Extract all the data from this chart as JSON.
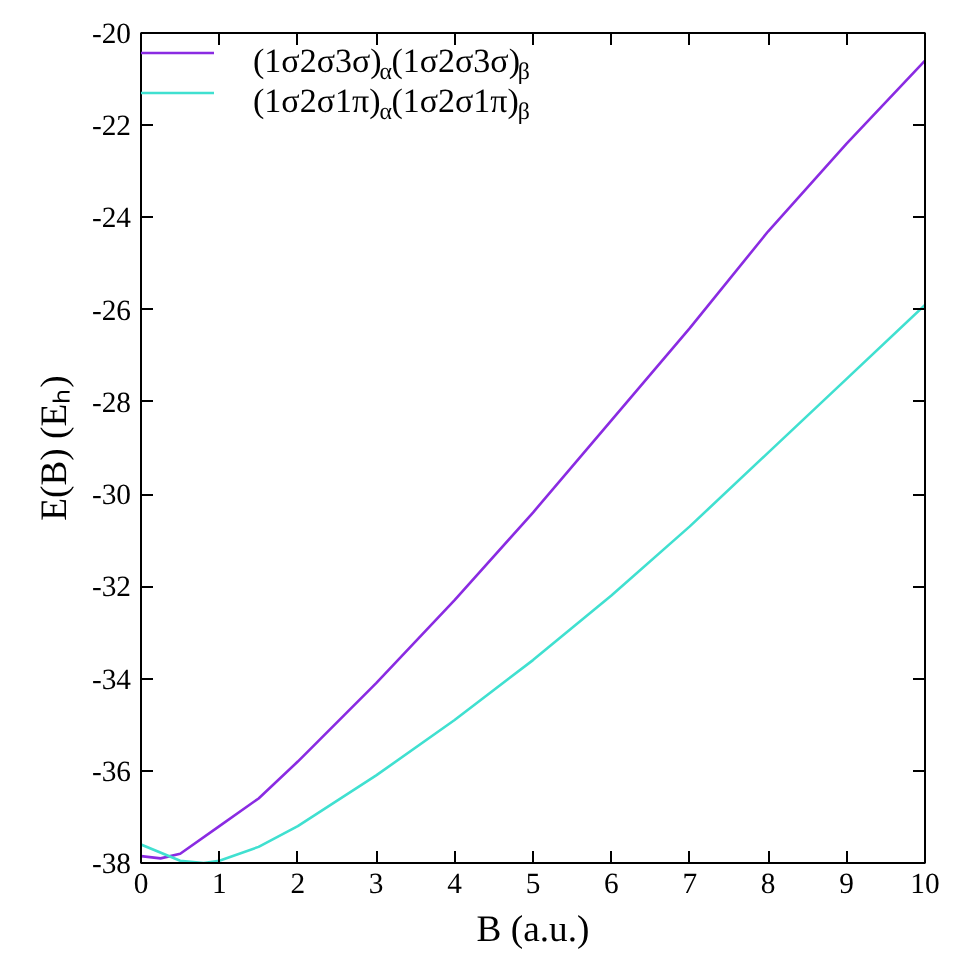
{
  "chart_data": {
    "type": "line",
    "xlabel": "B (a.u.)",
    "ylabel": "E(B) (Eₕ)",
    "xlim": [
      0,
      10
    ],
    "ylim": [
      -38,
      -20
    ],
    "xticks": [
      0,
      1,
      2,
      3,
      4,
      5,
      6,
      7,
      8,
      9,
      10
    ],
    "yticks": [
      -38,
      -36,
      -34,
      -32,
      -30,
      -28,
      -26,
      -24,
      -22,
      -20
    ],
    "grid": false,
    "legend": "top left",
    "line_style": "solid",
    "marker": "none",
    "series": [
      {
        "name": "(1σ2σ3σ)$_{α}$(1σ2σ3σ)$_{β}$",
        "color": "#8a2be2",
        "x": [
          0,
          0.25,
          0.5,
          1,
          1.5,
          2,
          3,
          4,
          5,
          6,
          7,
          8,
          9,
          10
        ],
        "values": [
          -37.85,
          -37.9,
          -37.8,
          -37.2,
          -36.6,
          -35.8,
          -34.1,
          -32.3,
          -30.4,
          -28.4,
          -26.4,
          -24.3,
          -22.4,
          -20.6
        ]
      },
      {
        "name": "(1σ2σ1π)$_{α}$(1σ2σ1π)$_{β}$",
        "color": "#40e0d0",
        "x": [
          0,
          0.5,
          0.8,
          1,
          1.5,
          2,
          3,
          4,
          5,
          6,
          7,
          8,
          9,
          10
        ],
        "values": [
          -37.6,
          -37.95,
          -38.0,
          -37.95,
          -37.65,
          -37.2,
          -36.1,
          -34.9,
          -33.6,
          -32.2,
          -30.7,
          -29.1,
          -27.5,
          -25.9
        ]
      }
    ]
  }
}
